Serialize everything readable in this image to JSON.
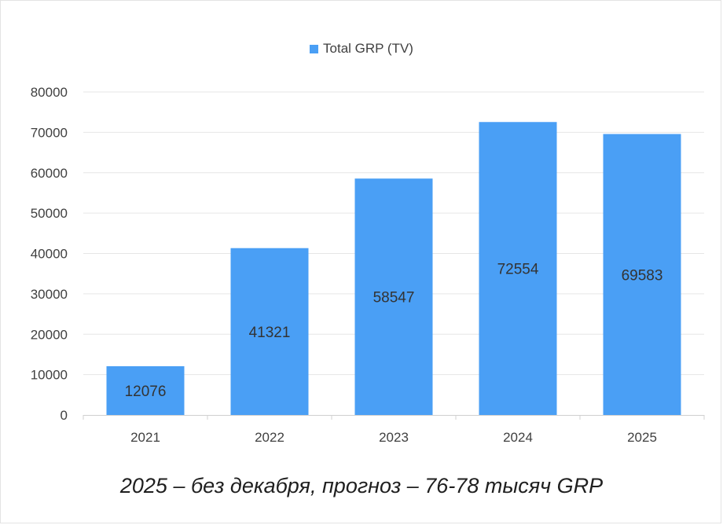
{
  "chart_data": {
    "type": "bar",
    "categories": [
      "2021",
      "2022",
      "2023",
      "2024",
      "2025"
    ],
    "series": [
      {
        "name": "Total GRP (TV)",
        "values": [
          12076,
          41321,
          58547,
          72554,
          69583
        ],
        "color": "#4a9ff5"
      }
    ],
    "data_labels": [
      "12076",
      "41321",
      "58547",
      "72554",
      "69583"
    ],
    "ylim": [
      0,
      80000
    ],
    "y_ticks": [
      "0",
      "10000",
      "20000",
      "30000",
      "40000",
      "50000",
      "60000",
      "70000",
      "80000"
    ],
    "grid": true,
    "legend_position": "top-center"
  },
  "caption": "2025 – без декабря, прогноз – 76-78 тысяч GRP"
}
